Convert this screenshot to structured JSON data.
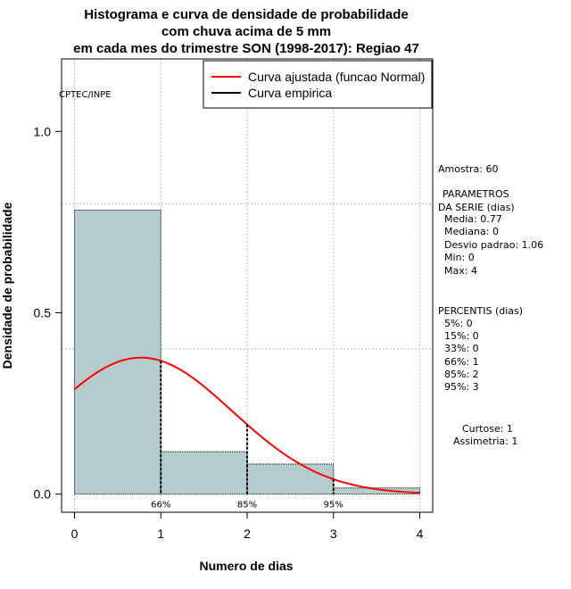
{
  "title_lines": [
    "Histograma e curva de densidade de probabilidade",
    "com chuva acima de 5 mm",
    "em cada mes do trimestre SON (1998-2017): Regiao 47"
  ],
  "colors": {
    "bar_fill": "#b4cccc",
    "fitted_curve": "#ff0000",
    "empirical_curve": "#000000",
    "grid": "#bbbbbb"
  },
  "chart_data": {
    "type": "bar",
    "title": "Histograma e curva de densidade de probabilidade com chuva acima de 5 mm em cada mes do trimestre SON (1998-2017): Regiao 47",
    "xlabel": "Numero de dias",
    "ylabel": "Densidade de probabilidade",
    "xlim": [
      -0.15,
      4.15
    ],
    "ylim": [
      -0.05,
      1.2
    ],
    "x_ticks": [
      0,
      1,
      2,
      3,
      4
    ],
    "y_ticks": [
      0.0,
      0.5,
      1.0
    ],
    "y_tick_labels": [
      "0.0",
      "0.5",
      "1.0"
    ],
    "grid_x": [
      0,
      1,
      2,
      3,
      4
    ],
    "grid_y": [
      0.4,
      0.8
    ],
    "bins": [
      {
        "from": 0,
        "to": 1,
        "density": 0.783
      },
      {
        "from": 1,
        "to": 2,
        "density": 0.117
      },
      {
        "from": 2,
        "to": 3,
        "density": 0.083
      },
      {
        "from": 3,
        "to": 4,
        "density": 0.017
      }
    ],
    "normal_fit": {
      "mean": 0.77,
      "sd": 1.06,
      "x_from": 0,
      "x_to": 4
    },
    "percentile_markers": [
      {
        "x": 1,
        "label": "66%"
      },
      {
        "x": 2,
        "label": "85%"
      },
      {
        "x": 3,
        "label": "95%"
      }
    ],
    "legend": {
      "position": "top-right",
      "entries": [
        {
          "label": "Curva ajustada (funcao Normal)",
          "color": "#ff0000"
        },
        {
          "label": "Curva empirica",
          "color": "#000000"
        }
      ]
    },
    "watermark": "CPTEC/INPE"
  },
  "stats": {
    "amostra": "Amostra: 60",
    "param_header_1": "PARAMETROS",
    "param_header_2": "DA SERIE (dias)",
    "media": "Media: 0.77",
    "mediana": "Mediana: 0",
    "desvio": "Desvio padrao: 1.06",
    "min": "Min: 0",
    "max": "Max: 4",
    "percentis_header": "PERCENTIS (dias)",
    "p5": "5%: 0",
    "p15": "15%: 0",
    "p33": "33%: 0",
    "p66": "66%: 1",
    "p85": "85%: 2",
    "p95": "95%: 3",
    "curtose": "Curtose: 1",
    "assimetria": "Assimetria: 1"
  }
}
